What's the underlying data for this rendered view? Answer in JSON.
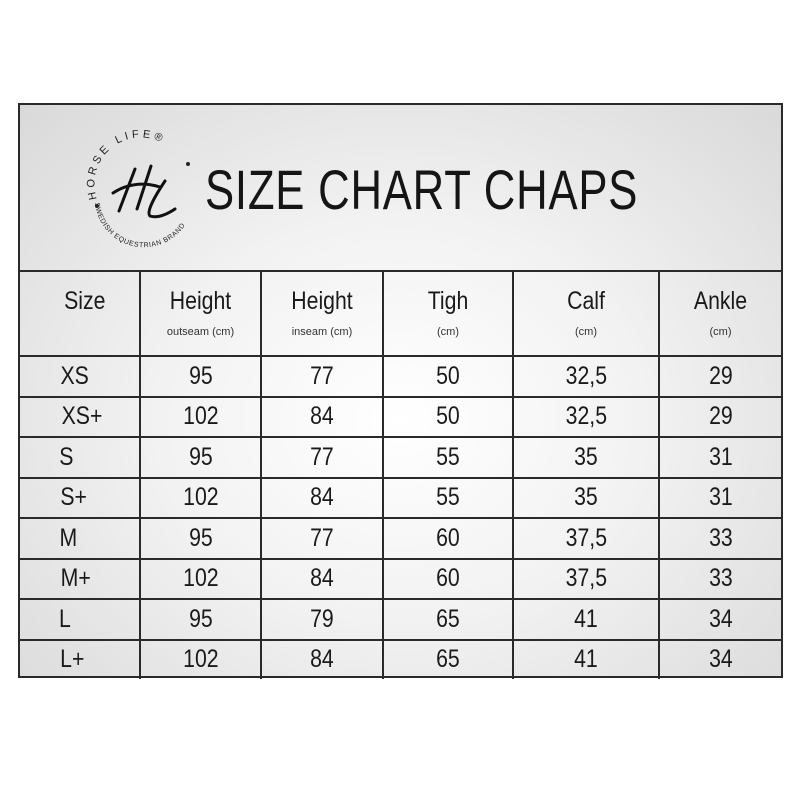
{
  "logo": {
    "top_text": "HORSE LIFE®",
    "monogram": "HL",
    "bottom_text": "SWEDISH EQUESTRIAN BRAND"
  },
  "title": "SIZE CHART CHAPS",
  "columns": [
    {
      "label": "Size",
      "sub": ""
    },
    {
      "label": "Height",
      "sub": "outseam (cm)"
    },
    {
      "label": "Height",
      "sub": "inseam (cm)"
    },
    {
      "label": "Tigh",
      "sub": "(cm)"
    },
    {
      "label": "Calf",
      "sub": "(cm)"
    },
    {
      "label": "Ankle",
      "sub": "(cm)"
    }
  ],
  "rows": [
    [
      "XS",
      "95",
      "77",
      "50",
      "32,5",
      "29"
    ],
    [
      "XS+",
      "102",
      "84",
      "50",
      "32,5",
      "29"
    ],
    [
      "S",
      "95",
      "77",
      "55",
      "35",
      "31"
    ],
    [
      "S+",
      "102",
      "84",
      "55",
      "35",
      "31"
    ],
    [
      "M",
      "95",
      "77",
      "60",
      "37,5",
      "33"
    ],
    [
      "M+",
      "102",
      "84",
      "60",
      "37,5",
      "33"
    ],
    [
      "L",
      "95",
      "79",
      "65",
      "41",
      "34"
    ],
    [
      "L+",
      "102",
      "84",
      "65",
      "41",
      "34"
    ]
  ]
}
